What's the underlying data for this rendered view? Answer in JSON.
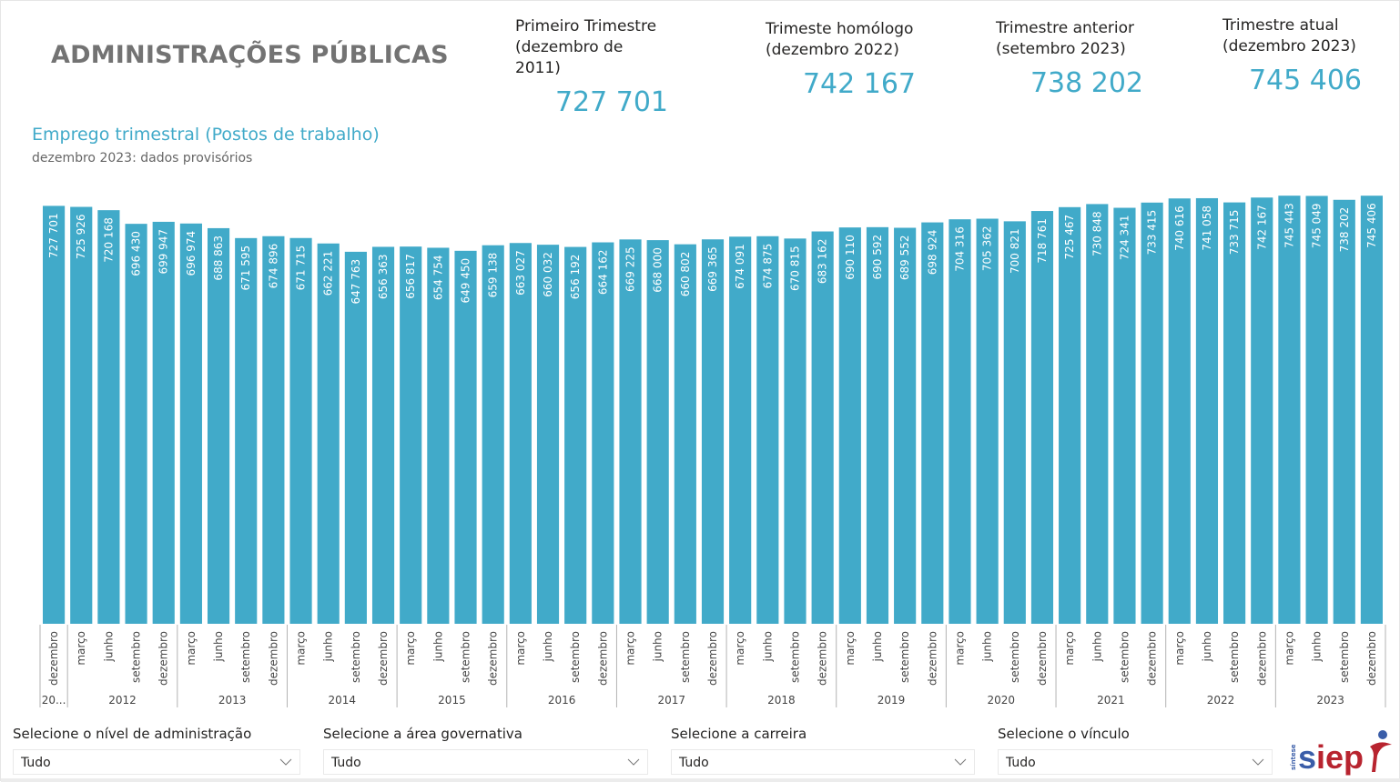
{
  "page": {
    "title": "ADMINISTRAÇÕES PÚBLICAS"
  },
  "kpis": [
    {
      "label_line1": "Primeiro Trimestre",
      "label_line2": "(dezembro de 2011)",
      "value": "727 701"
    },
    {
      "label_line1": "Trimeste homólogo",
      "label_line2": "(dezembro 2022)",
      "value": "742 167"
    },
    {
      "label_line1": "Trimestre anterior",
      "label_line2": "(setembro 2023)",
      "value": "738 202"
    },
    {
      "label_line1": "Trimestre atual",
      "label_line2": "(dezembro 2023)",
      "value": "745 406"
    }
  ],
  "slicers": [
    {
      "label": "Selecione o nível de administração",
      "value": "Tudo"
    },
    {
      "label": "Selecione a área governativa",
      "value": "Tudo"
    },
    {
      "label": "Selecione a carreira",
      "value": "Tudo"
    },
    {
      "label": "Selecione o vínculo",
      "value": "Tudo"
    }
  ],
  "logo": {
    "text": "siep",
    "tag": "síntese"
  },
  "colors": {
    "bar": "#41aac9",
    "accent": "#41aac9",
    "title_gray": "#737373",
    "logo_blue": "#3a5da8",
    "logo_red": "#b8242f"
  },
  "chart_data": {
    "type": "bar",
    "title": "Emprego trimestral (Postos de trabalho)",
    "subtitle": "dezembro 2023: dados provisórios",
    "xlabel": "",
    "ylabel": "",
    "grid": false,
    "legend": "none",
    "data_labels": "inside-rotated",
    "year_groups": [
      {
        "label": "20...",
        "count": 1
      },
      {
        "label": "2012",
        "count": 4
      },
      {
        "label": "2013",
        "count": 4
      },
      {
        "label": "2014",
        "count": 4
      },
      {
        "label": "2015",
        "count": 4
      },
      {
        "label": "2016",
        "count": 4
      },
      {
        "label": "2017",
        "count": 4
      },
      {
        "label": "2018",
        "count": 4
      },
      {
        "label": "2019",
        "count": 4
      },
      {
        "label": "2020",
        "count": 4
      },
      {
        "label": "2021",
        "count": 4
      },
      {
        "label": "2022",
        "count": 4
      },
      {
        "label": "2023",
        "count": 4
      }
    ],
    "categories": [
      "dezembro",
      "março",
      "junho",
      "setembro",
      "dezembro",
      "março",
      "junho",
      "setembro",
      "dezembro",
      "março",
      "junho",
      "setembro",
      "dezembro",
      "março",
      "junho",
      "setembro",
      "dezembro",
      "março",
      "junho",
      "setembro",
      "dezembro",
      "março",
      "junho",
      "setembro",
      "dezembro",
      "março",
      "junho",
      "setembro",
      "dezembro",
      "março",
      "junho",
      "setembro",
      "dezembro",
      "março",
      "junho",
      "setembro",
      "dezembro",
      "março",
      "junho",
      "setembro",
      "dezembro",
      "março",
      "junho",
      "setembro",
      "dezembro",
      "março",
      "junho",
      "setembro",
      "dezembro"
    ],
    "values": [
      727701,
      725926,
      720168,
      696430,
      699947,
      696974,
      688863,
      671595,
      674896,
      671715,
      662221,
      647763,
      656363,
      656817,
      654754,
      649450,
      659138,
      663027,
      660032,
      656192,
      664162,
      669225,
      668000,
      660802,
      669365,
      674091,
      674875,
      670815,
      683162,
      690110,
      690592,
      689552,
      698924,
      704316,
      705362,
      700821,
      718761,
      725467,
      730848,
      724341,
      733415,
      740616,
      741058,
      733715,
      742167,
      745443,
      745049,
      738202,
      745406
    ],
    "labels": [
      "727 701",
      "725 926",
      "720 168",
      "696 430",
      "699 947",
      "696 974",
      "688 863",
      "671 595",
      "674 896",
      "671 715",
      "662 221",
      "647 763",
      "656 363",
      "656 817",
      "654 754",
      "649 450",
      "659 138",
      "663 027",
      "660 032",
      "656 192",
      "664 162",
      "669 225",
      "668 000",
      "660 802",
      "669 365",
      "674 091",
      "674 875",
      "670 815",
      "683 162",
      "690 110",
      "690 592",
      "689 552",
      "698 924",
      "704 316",
      "705 362",
      "700 821",
      "718 761",
      "725 467",
      "730 848",
      "724 341",
      "733 415",
      "740 616",
      "741 058",
      "733 715",
      "742 167",
      "745 443",
      "745 049",
      "738 202",
      "745 406"
    ],
    "ylim": [
      0,
      760000
    ]
  }
}
